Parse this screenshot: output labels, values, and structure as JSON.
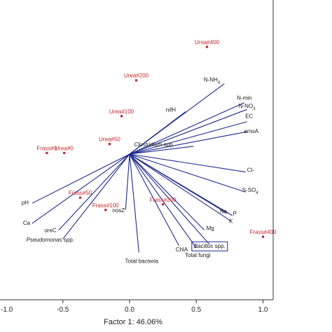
{
  "chart_data": {
    "type": "scatter",
    "title": "",
    "xlabel": "Factor 1: 46.06%",
    "ylabel": "",
    "xlim": [
      -0.95,
      1.1
    ],
    "ylim": [
      -1.1,
      1.0
    ],
    "xticks": [
      {
        "value": -1.0,
        "label": "-1.0"
      },
      {
        "value": -0.5,
        "label": "-0.5"
      },
      {
        "value": 0.0,
        "label": "0.0"
      },
      {
        "value": 0.5,
        "label": "0.5"
      },
      {
        "value": 1.0,
        "label": "1.0"
      }
    ],
    "grid": false,
    "colors": {
      "vectors": "#1f2a8c",
      "samples": "#c0282d",
      "text": "#1a1a1a",
      "axes": "#333333"
    },
    "variables": [
      {
        "name": "N-NH",
        "sub": "4",
        "x": 0.71,
        "y": 0.63,
        "italic": false,
        "boxed": false
      },
      {
        "name": "nifH",
        "x": 0.42,
        "y": 0.38,
        "italic": false,
        "boxed": false
      },
      {
        "name": "N-min",
        "x": 0.86,
        "y": 0.46,
        "italic": false,
        "boxed": false
      },
      {
        "name": "N-NO",
        "sub": "3",
        "x": 0.88,
        "y": 0.4,
        "italic": false,
        "boxed": false
      },
      {
        "name": "EC",
        "x": 0.88,
        "y": 0.29,
        "italic": false,
        "boxed": false
      },
      {
        "name": "amoA",
        "x": 0.88,
        "y": 0.2,
        "italic": false,
        "boxed": false
      },
      {
        "name": "Clostridium",
        "suffix": " spp.",
        "x": 0.48,
        "y": 0.07,
        "italic": true,
        "boxed": false
      },
      {
        "name": "Cl-",
        "x": 0.87,
        "y": -0.16,
        "italic": false,
        "boxed": false
      },
      {
        "name": "S-SO",
        "sub": "4",
        "x": 0.87,
        "y": -0.34,
        "italic": false,
        "boxed": false
      },
      {
        "name": "Na",
        "x": 0.73,
        "y": -0.53,
        "italic": false,
        "boxed": false
      },
      {
        "name": "P",
        "x": 0.77,
        "y": -0.55,
        "italic": false,
        "boxed": false
      },
      {
        "name": "K",
        "x": 0.76,
        "y": -0.6,
        "italic": false,
        "boxed": false
      },
      {
        "name": "Mg",
        "x": 0.56,
        "y": -0.68,
        "italic": false,
        "boxed": false
      },
      {
        "name": "Bacillus",
        "suffix": " spp.",
        "x": 0.6,
        "y": -0.81,
        "italic": true,
        "boxed": true
      },
      {
        "name": "Total fungi",
        "x": 0.5,
        "y": -0.84,
        "italic": false,
        "boxed": false
      },
      {
        "name": "ChlA",
        "x": 0.37,
        "y": -0.82,
        "italic": false,
        "boxed": false
      },
      {
        "name": "Total bacteria",
        "x": 0.07,
        "y": -0.88,
        "italic": false,
        "boxed": false
      },
      {
        "name": "nosZ",
        "x": -0.03,
        "y": -0.5,
        "italic": false,
        "boxed": false
      },
      {
        "name": "ureC",
        "x": -0.53,
        "y": -0.68,
        "italic": false,
        "boxed": false
      },
      {
        "name": "Pseudomonas",
        "suffix": " spp.",
        "x": -0.5,
        "y": -0.76,
        "italic": true,
        "boxed": false
      },
      {
        "name": "Ca",
        "x": -0.73,
        "y": -0.62,
        "italic": false,
        "boxed": false
      },
      {
        "name": "pH",
        "x": -0.73,
        "y": -0.44,
        "italic": false,
        "boxed": false
      }
    ],
    "samples": [
      {
        "name": "Urea#400",
        "x": 0.58,
        "y": 0.96
      },
      {
        "name": "Urea#200",
        "x": 0.05,
        "y": 0.66
      },
      {
        "name": "Urea#100",
        "x": -0.06,
        "y": 0.34
      },
      {
        "name": "Urea#50",
        "x": -0.15,
        "y": 0.09
      },
      {
        "name": "Urea#0",
        "x": -0.49,
        "y": 0.01
      },
      {
        "name": "Frass#0",
        "x": -0.62,
        "y": 0.01
      },
      {
        "name": "Frass#50",
        "x": -0.37,
        "y": -0.39
      },
      {
        "name": "Frass#100",
        "x": -0.18,
        "y": -0.5
      },
      {
        "name": "Frass#200",
        "x": 0.25,
        "y": -0.45
      },
      {
        "name": "Frass#400",
        "x": 1.0,
        "y": -0.74
      }
    ]
  }
}
